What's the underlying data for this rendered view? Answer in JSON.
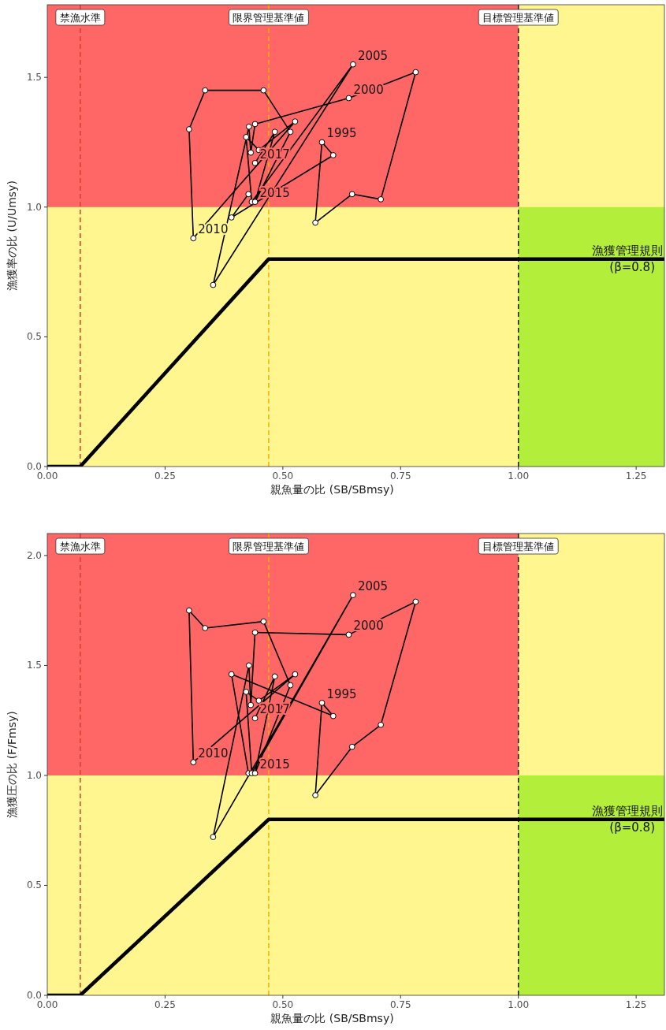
{
  "chart_data": [
    {
      "type": "line",
      "xlabel": "親魚量の比 (SB/SBmsy)",
      "ylabel": "漁獲率の比 (U/Umsy)",
      "xlim": [
        0,
        1.31
      ],
      "ylim": [
        0,
        1.78
      ],
      "xticks": [
        {
          "value": 0,
          "label": "0.00"
        },
        {
          "value": 0.25,
          "label": "0.25"
        },
        {
          "value": 0.5,
          "label": "0.50"
        },
        {
          "value": 0.75,
          "label": "0.75"
        },
        {
          "value": 1,
          "label": "1.00"
        },
        {
          "value": 1.25,
          "label": "1.25"
        }
      ],
      "yticks": [
        {
          "value": 0,
          "label": "0.0"
        },
        {
          "value": 0.5,
          "label": "0.5"
        },
        {
          "value": 1,
          "label": "1.0"
        },
        {
          "value": 1.5,
          "label": "1.5"
        }
      ],
      "bands": [
        {
          "axis": "y",
          "from": 1,
          "to": 1.78,
          "color": "#ff6666"
        },
        {
          "axis": "x",
          "from": 1,
          "to": 1.31,
          "color": "#b3ee3a"
        }
      ],
      "ref_lines": [
        {
          "axis": "x",
          "value": 0.07,
          "label": "禁漁水準",
          "color": "#d4402a",
          "line_style": "dashed"
        },
        {
          "axis": "x",
          "value": 0.47,
          "label": "限界管理基準値",
          "color": "#f2b200",
          "line_style": "dashed"
        },
        {
          "axis": "x",
          "value": 1,
          "label": "目標管理基準値",
          "color": "#1a1a1a",
          "line_style": "dashed"
        }
      ],
      "series": [
        {
          "type": "line",
          "marker": "circle",
          "color": "#000000",
          "x": [
            0.427,
            0.391,
            0.607,
            0.583,
            0.569,
            0.647,
            0.708,
            0.782,
            0.64,
            0.441,
            0.432,
            0.428,
            0.352,
            0.649,
            0.434,
            0.422,
            0.449,
            0.526,
            0.31,
            0.301,
            0.335,
            0.459,
            0.516,
            0.441,
            0.483,
            0.441
          ],
          "values": [
            1.05,
            0.96,
            1.2,
            1.25,
            0.94,
            1.05,
            1.03,
            1.52,
            1.42,
            1.32,
            1.21,
            1.31,
            0.7,
            1.55,
            1.02,
            1.27,
            1.22,
            1.33,
            0.88,
            1.3,
            1.45,
            1.45,
            1.29,
            1.02,
            1.29,
            1.17
          ]
        },
        {
          "type": "line",
          "marker": "none",
          "color": "#000000",
          "x": [
            0,
            0.07,
            0.47,
            1.31
          ],
          "values": [
            0,
            0,
            0.8,
            0.8
          ]
        }
      ],
      "annotations": [
        {
          "text": "1995",
          "x": 0.583,
          "y": 1.25
        },
        {
          "text": "2000",
          "x": 0.64,
          "y": 1.42
        },
        {
          "text": "2005",
          "x": 0.649,
          "y": 1.55
        },
        {
          "text": "2010",
          "x": 0.31,
          "y": 0.88
        },
        {
          "text": "2015",
          "x": 0.441,
          "y": 1.02
        },
        {
          "text": "2017",
          "x": 0.441,
          "y": 1.17
        },
        {
          "text": "漁獲管理規則\n(β=0.8)",
          "x": 1.31,
          "y": 0.8
        }
      ]
    },
    {
      "type": "line",
      "xlabel": "親魚量の比 (SB/SBmsy)",
      "ylabel": "漁獲圧の比 (F/Fmsy)",
      "xlim": [
        0,
        1.31
      ],
      "ylim": [
        0,
        2.1
      ],
      "xticks": [
        {
          "value": 0,
          "label": "0.00"
        },
        {
          "value": 0.25,
          "label": "0.25"
        },
        {
          "value": 0.5,
          "label": "0.50"
        },
        {
          "value": 0.75,
          "label": "0.75"
        },
        {
          "value": 1,
          "label": "1.00"
        },
        {
          "value": 1.25,
          "label": "1.25"
        }
      ],
      "yticks": [
        {
          "value": 0,
          "label": "0.0"
        },
        {
          "value": 0.5,
          "label": "0.5"
        },
        {
          "value": 1,
          "label": "1.0"
        },
        {
          "value": 1.5,
          "label": "1.5"
        },
        {
          "value": 2,
          "label": "2.0"
        }
      ],
      "bands": [
        {
          "axis": "y",
          "from": 1,
          "to": 2.1,
          "color": "#ff6666"
        },
        {
          "axis": "x",
          "from": 1,
          "to": 1.31,
          "color": "#b3ee3a"
        }
      ],
      "ref_lines": [
        {
          "axis": "x",
          "value": 0.07,
          "label": "禁漁水準",
          "color": "#d4402a",
          "line_style": "dashed"
        },
        {
          "axis": "x",
          "value": 0.47,
          "label": "限界管理基準値",
          "color": "#f2b200",
          "line_style": "dashed"
        },
        {
          "axis": "x",
          "value": 1,
          "label": "目標管理基準値",
          "color": "#1a1a1a",
          "line_style": "dashed"
        }
      ],
      "series": [
        {
          "type": "line",
          "marker": "circle",
          "color": "#000000",
          "x": [
            0.427,
            0.391,
            0.607,
            0.583,
            0.569,
            0.647,
            0.708,
            0.782,
            0.64,
            0.441,
            0.432,
            0.428,
            0.352,
            0.649,
            0.434,
            0.422,
            0.449,
            0.526,
            0.31,
            0.301,
            0.335,
            0.459,
            0.516,
            0.441,
            0.483,
            0.441
          ],
          "values": [
            1.01,
            1.46,
            1.27,
            1.33,
            0.91,
            1.13,
            1.23,
            1.79,
            1.64,
            1.65,
            1.32,
            1.5,
            0.72,
            1.82,
            1.01,
            1.38,
            1.34,
            1.46,
            1.06,
            1.75,
            1.67,
            1.7,
            1.41,
            1.01,
            1.45,
            1.26
          ]
        },
        {
          "type": "line",
          "marker": "none",
          "color": "#000000",
          "x": [
            0,
            0.07,
            0.47,
            1.31
          ],
          "values": [
            0,
            0,
            0.8,
            0.8
          ]
        }
      ],
      "annotations": [
        {
          "text": "1995",
          "x": 0.583,
          "y": 1.33
        },
        {
          "text": "2000",
          "x": 0.64,
          "y": 1.64
        },
        {
          "text": "2005",
          "x": 0.649,
          "y": 1.82
        },
        {
          "text": "2010",
          "x": 0.31,
          "y": 1.06
        },
        {
          "text": "2015",
          "x": 0.441,
          "y": 1.01
        },
        {
          "text": "2017",
          "x": 0.441,
          "y": 1.26
        },
        {
          "text": "漁獲管理規則\n(β=0.8)",
          "x": 1.31,
          "y": 0.8
        }
      ]
    }
  ]
}
